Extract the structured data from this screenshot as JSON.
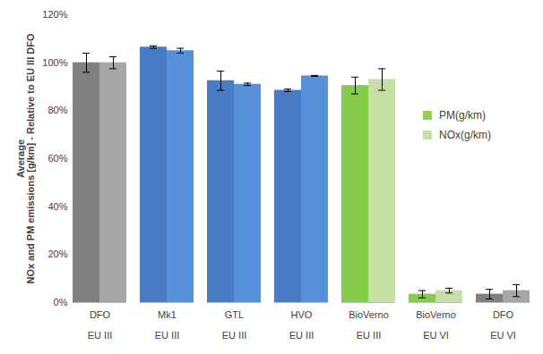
{
  "chart_data": {
    "type": "bar",
    "y_label": "Average\nNOx and PM emissions [g/km] - Relative to EU III DFO",
    "categories": [
      "DFO",
      "Mk1",
      "GTL",
      "HVO",
      "BioVerno",
      "BioVerno",
      "DFO"
    ],
    "category_groups": [
      "EU III",
      "EU III",
      "EU III",
      "EU III",
      "EU III",
      "EU VI",
      "EU VI"
    ],
    "series": [
      {
        "name": "PM(g/km)",
        "color": "#92d050",
        "colors": [
          "#808080",
          "#4a7cc4",
          "#4a7cc4",
          "#4a7cc4",
          "#86cc4a",
          "#86cc4a",
          "#808080"
        ],
        "values": [
          100,
          106.5,
          92.5,
          88.5,
          90.5,
          3.5,
          3.5
        ],
        "errors": [
          4,
          0.5,
          4,
          0.5,
          3.5,
          1.5,
          2
        ]
      },
      {
        "name": "NOx(g/km)",
        "color": "#c4e0a4",
        "colors": [
          "#a6a6a6",
          "#5590d9",
          "#5590d9",
          "#5590d9",
          "#c4e0a4",
          "#c4e0a4",
          "#a6a6a6"
        ],
        "values": [
          100,
          105,
          91,
          94.5,
          93,
          5,
          5
        ],
        "errors": [
          2.5,
          1,
          0.5,
          0.2,
          4.5,
          1,
          2.5
        ]
      }
    ],
    "ylim": [
      0,
      120
    ],
    "yticks": [
      {
        "value": 0,
        "label": "0%"
      },
      {
        "value": 20,
        "label": "20%"
      },
      {
        "value": 40,
        "label": "40%"
      },
      {
        "value": 60,
        "label": "60%"
      },
      {
        "value": 80,
        "label": "80%"
      },
      {
        "value": 100,
        "label": "100%"
      },
      {
        "value": 120,
        "label": "120%"
      }
    ],
    "grid": false,
    "legend": "right"
  }
}
